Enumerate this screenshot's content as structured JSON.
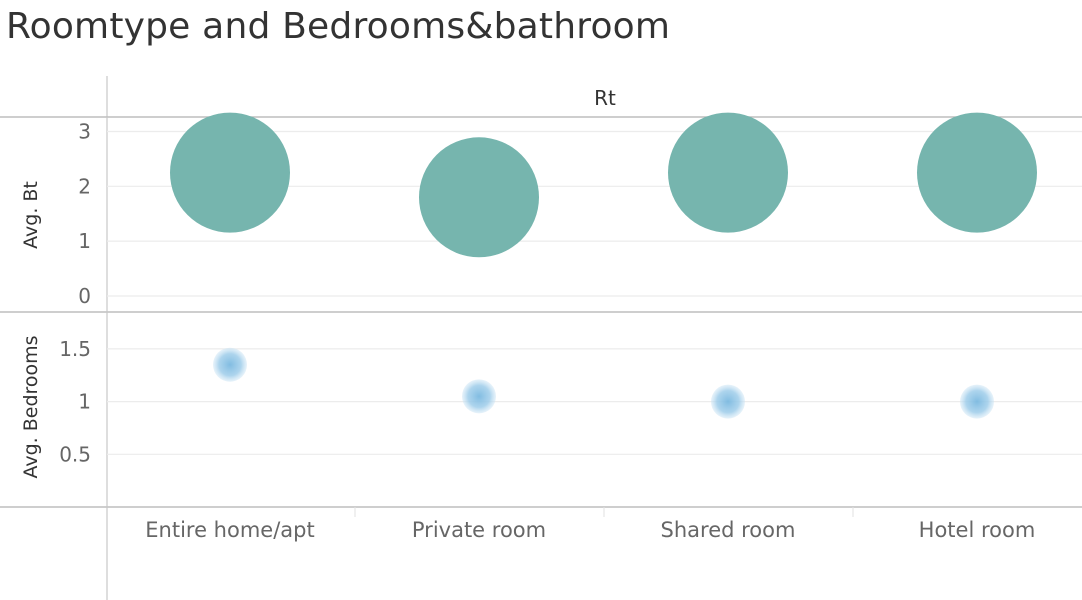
{
  "title": "Roomtype and Bedrooms&bathroom",
  "column_header": "Rt",
  "chart_data": {
    "type": "scatter",
    "title": "Roomtype and Bedrooms&bathroom",
    "column_header": "Rt",
    "categories": [
      "Entire home/apt",
      "Private room",
      "Shared room",
      "Hotel room"
    ],
    "panels": [
      {
        "name": "bathrooms-panel",
        "ylabel": "Avg. Bt",
        "ylim": [
          0,
          3.1
        ],
        "yticks": [
          0,
          1,
          2,
          3
        ],
        "ytick_labels": [
          "0",
          "1",
          "2",
          "3"
        ],
        "color": "#76b5ae",
        "values": [
          2.25,
          1.8,
          2.25,
          2.25
        ]
      },
      {
        "name": "bedrooms-panel",
        "ylabel": "Avg. Bedrooms",
        "ylim": [
          0,
          1.85
        ],
        "yticks": [
          0.5,
          1,
          1.5
        ],
        "ytick_labels": [
          "0.5",
          "1",
          "1.5"
        ],
        "color": "#8cc3e4",
        "values": [
          1.35,
          1.05,
          1.0,
          1.0
        ]
      }
    ],
    "grid": true,
    "legend": "none"
  }
}
